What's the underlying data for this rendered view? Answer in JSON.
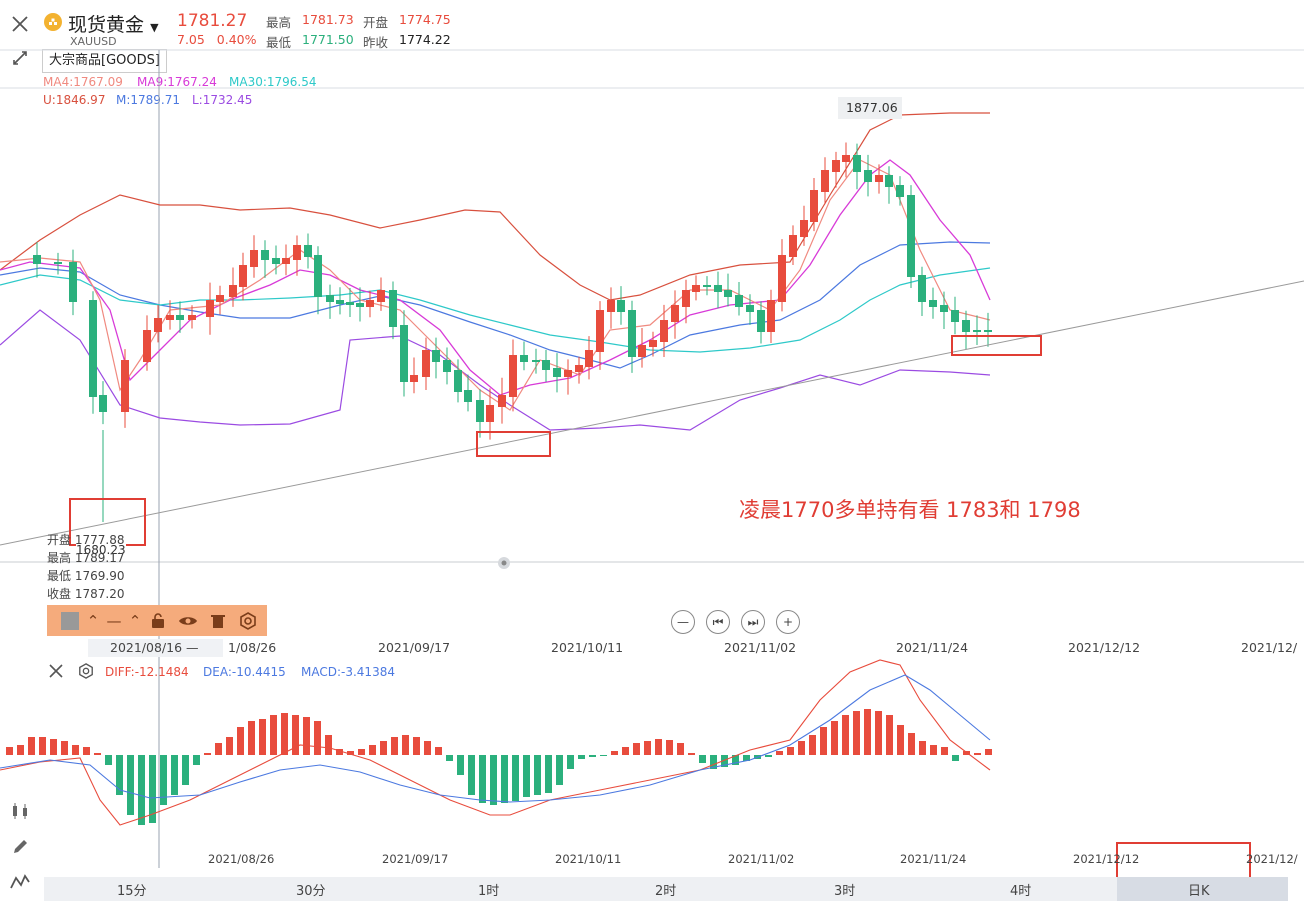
{
  "header": {
    "name": "现货黄金",
    "code": "XAUUSD",
    "price": "1781.27",
    "change": "7.05",
    "change_pct": "0.40%",
    "high_label": "最高",
    "high": "1781.73",
    "low_label": "最低",
    "low": "1771.50",
    "open_label": "开盘",
    "open": "1774.75",
    "prev_label": "昨收",
    "prev": "1774.22",
    "category": "大宗商品[GOODS]"
  },
  "indicators": {
    "ma4": "MA4:1767.09",
    "ma9": "MA9:1767.24",
    "ma30": "MA30:1796.54",
    "u": "U:1846.97",
    "m": "M:1789.71",
    "l": "L:1732.45",
    "diff": "DIFF:-12.1484",
    "dea": "DEA:-10.4415",
    "macd": "MACD:-3.41384"
  },
  "chart_marks": {
    "max_label": "1877.06",
    "min_label": "1680.23"
  },
  "cursor_ohlc": {
    "open_label": "开盘",
    "open": "1777.88",
    "high_label": "最高",
    "high": "1789.17",
    "low_label": "最低",
    "low": "1769.90",
    "close_label": "收盘",
    "close": "1787.20",
    "date": "2021/08/16"
  },
  "annotation": "凌晨1770多单持有看  1783和 1798",
  "date_axis": [
    "1/08/26",
    "2021/09/17",
    "2021/10/11",
    "2021/11/02",
    "2021/11/24",
    "2021/12/12",
    "2021/12/"
  ],
  "date_axis_bottom": [
    "2021/08/26",
    "2021/09/17",
    "2021/10/11",
    "2021/11/02",
    "2021/11/24",
    "2021/12/12",
    "2021/12/"
  ],
  "time_bar": [
    "15分",
    "30分",
    "1时",
    "2时",
    "3时",
    "4时",
    "日K"
  ],
  "icons": {
    "close": "close-icon",
    "expand": "expand-icon",
    "toolbar": [
      "square-icon",
      "chevron-up-icon",
      "line-icon",
      "chevron-up-icon",
      "lock-icon",
      "eye-icon",
      "trash-icon",
      "settings-icon"
    ],
    "nav": [
      "zoom-out-icon",
      "step-back-icon",
      "step-forward-icon",
      "zoom-in-icon"
    ],
    "side": [
      "candlestick-icon",
      "pencil-icon",
      "indicator-icon"
    ]
  },
  "colors": {
    "up": "#e84c3d",
    "down": "#2bb07d",
    "ma4": "#f08a80",
    "ma9": "#d83bd8",
    "ma30": "#2ec9c9",
    "boll_u": "#d8503e",
    "boll_m": "#4c79e0",
    "boll_l": "#9b4be2"
  },
  "chart_data": {
    "type": "candlestick",
    "period": "daily",
    "x": [
      "2021/08/16",
      "2021/08/26",
      "2021/09/17",
      "2021/10/11",
      "2021/11/02",
      "2021/11/24"
    ],
    "indicators": [
      "MA4",
      "MA9",
      "MA30",
      "BOLL U/M/L",
      "MACD DIFF/DEA/MACD"
    ],
    "marked_high": 1877.06,
    "marked_low": 1680.23
  }
}
